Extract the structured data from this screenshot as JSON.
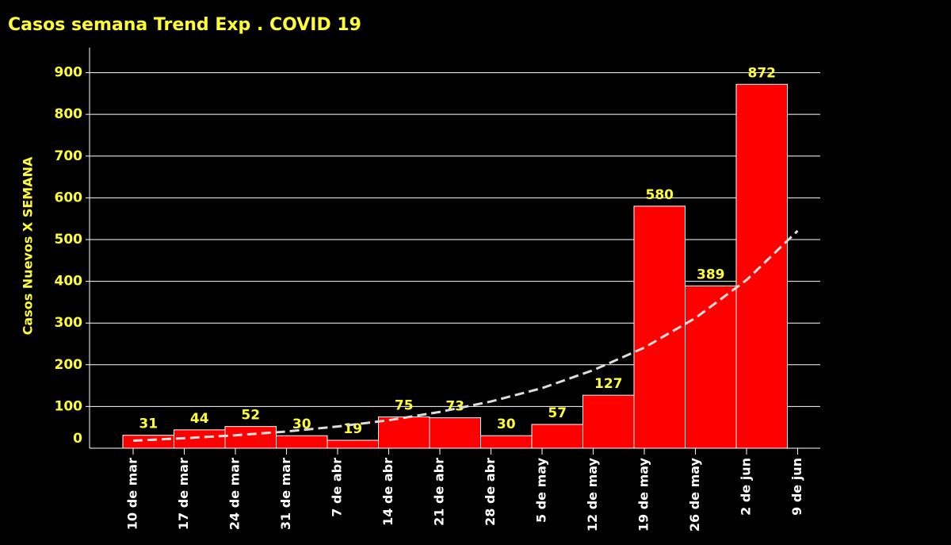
{
  "chart_data": {
    "type": "bar",
    "title": "Casos semana Trend Exp . COVID 19",
    "y_label": "Casos Nuevos X SEMANA",
    "categories": [
      "10 de mar",
      "17 de mar",
      "24 de mar",
      "31 de mar",
      "7 de abr",
      "14 de abr",
      "21 de abr",
      "28 de abr",
      "5 de may",
      "12 de may",
      "19 de may",
      "26 de may",
      "2 de jun",
      "9 de jun"
    ],
    "values": [
      31,
      44,
      52,
      30,
      19,
      75,
      73,
      30,
      57,
      127,
      580,
      389,
      872,
      null
    ],
    "trend": [
      18,
      24,
      31,
      40,
      52,
      67,
      87,
      112,
      144,
      187,
      241,
      312,
      403,
      521
    ],
    "color": "#ff0000",
    "trend_color": "#dddddd",
    "ylim": [
      0,
      960
    ],
    "yticks": [
      0,
      100,
      200,
      300,
      400,
      500,
      600,
      700,
      800,
      900
    ],
    "grid": true
  }
}
